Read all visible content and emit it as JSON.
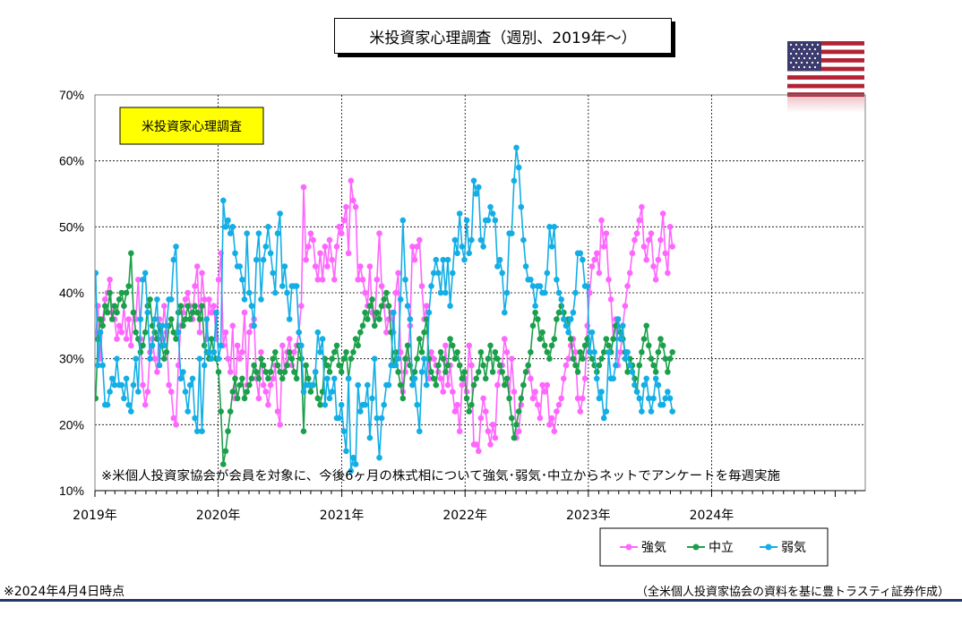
{
  "title": "米投資家心理調査（週別、2019年～）",
  "footer": {
    "as_of": "※2024年4月4日時点",
    "source": "（全米個人投資家協会の資料を基に豊トラスティ証券作成）"
  },
  "colors": {
    "bullish": "#ff66ff",
    "neutral": "#1aa04a",
    "bearish": "#13aee5",
    "annotation_bg": "#ffff00",
    "footer_line": "#1f3864"
  },
  "icon": "us-flag-icon",
  "chart_data": {
    "type": "line",
    "inner_label": "米投資家心理調査",
    "note": "※米個人投資家協会が会員を対象に、今後6ヶ月の株式相について強気･弱気･中立からネットでアンケートを毎週実施",
    "x_labels": [
      "2019年",
      "2020年",
      "2021年",
      "2022年",
      "2023年",
      "2024年"
    ],
    "x_range": [
      "2019-01-01",
      "2025-03-31"
    ],
    "y_ticks": [
      "10%",
      "20%",
      "30%",
      "40%",
      "50%",
      "60%",
      "70%"
    ],
    "ylim": [
      10,
      70
    ],
    "grid": true,
    "legend_position": "bottom-right",
    "series": [
      {
        "name": "強気",
        "color": "#ff66ff",
        "start": "2019-01-03",
        "step_days": 7,
        "values": [
          33,
          38,
          30,
          36,
          39,
          40,
          42,
          37,
          36,
          33,
          35,
          34,
          38,
          33,
          36,
          32,
          37,
          36,
          42,
          33,
          26,
          23,
          25,
          31,
          33,
          30,
          28,
          36,
          33,
          38,
          34,
          26,
          25,
          21,
          20,
          29,
          35,
          37,
          39,
          40,
          38,
          36,
          41,
          44,
          34,
          43,
          39,
          33,
          39,
          37,
          38,
          33,
          42,
          46,
          32,
          34,
          30,
          28,
          35,
          24,
          32,
          30,
          31,
          37,
          26,
          34,
          35,
          36,
          27,
          24,
          31,
          26,
          25,
          23,
          26,
          27,
          29,
          22,
          20,
          32,
          28,
          31,
          33,
          29,
          31,
          32,
          34,
          38,
          56,
          45,
          47,
          49,
          48,
          44,
          42,
          46,
          42,
          47,
          44,
          48,
          45,
          42,
          47,
          50,
          49,
          51,
          53,
          46,
          57,
          54,
          53,
          42,
          44,
          42,
          40,
          38,
          44,
          37,
          35,
          42,
          49,
          41,
          38,
          34,
          36,
          37,
          34,
          40,
          43,
          31,
          25,
          28,
          30,
          35,
          47,
          45,
          47,
          48,
          41,
          36,
          38,
          27,
          31,
          30,
          29,
          28,
          27,
          25,
          32,
          26,
          29,
          25,
          22,
          23,
          19,
          26,
          27,
          25,
          32,
          29,
          17,
          17,
          16,
          21,
          24,
          22,
          19,
          17,
          20,
          18,
          26,
          28,
          29,
          33,
          31,
          24,
          30,
          25,
          18,
          19,
          23,
          26,
          28,
          29,
          27,
          24,
          25,
          23,
          21,
          26,
          25,
          26,
          20,
          21,
          19,
          22,
          23,
          24,
          27,
          29,
          30,
          32,
          33,
          31,
          24,
          22,
          24,
          27,
          35,
          40,
          44,
          45,
          46,
          43,
          51,
          47,
          49,
          42,
          39,
          33,
          36,
          29,
          31,
          35,
          38,
          41,
          43,
          46,
          48,
          49,
          51,
          53,
          47,
          45,
          48,
          49,
          44,
          42,
          45,
          48,
          52,
          46,
          43,
          50,
          47
        ]
      },
      {
        "name": "中立",
        "color": "#1aa04a",
        "start": "2019-01-03",
        "step_days": 7,
        "values": [
          24,
          33,
          36,
          35,
          38,
          37,
          40,
          36,
          38,
          37,
          39,
          40,
          38,
          40,
          41,
          46,
          37,
          34,
          33,
          31,
          32,
          34,
          38,
          39,
          35,
          34,
          33,
          35,
          32,
          30,
          31,
          35,
          36,
          34,
          33,
          37,
          38,
          35,
          36,
          38,
          36,
          37,
          38,
          37,
          36,
          38,
          32,
          31,
          30,
          33,
          31,
          30,
          28,
          22,
          14,
          16,
          19,
          22,
          25,
          27,
          24,
          26,
          27,
          24,
          25,
          26,
          27,
          29,
          28,
          27,
          30,
          29,
          28,
          27,
          28,
          30,
          31,
          29,
          28,
          27,
          28,
          29,
          31,
          30,
          28,
          27,
          32,
          30,
          19,
          29,
          27,
          25,
          26,
          28,
          24,
          23,
          25,
          30,
          29,
          28,
          30,
          31,
          32,
          29,
          28,
          30,
          31,
          27,
          30,
          31,
          33,
          32,
          34,
          35,
          37,
          36,
          38,
          39,
          35,
          37,
          36,
          38,
          39,
          40,
          38,
          34,
          29,
          31,
          28,
          26,
          24,
          30,
          32,
          29,
          27,
          28,
          30,
          33,
          31,
          34,
          36,
          30,
          28,
          27,
          26,
          29,
          31,
          30,
          28,
          29,
          33,
          32,
          30,
          31,
          29,
          27,
          28,
          24,
          22,
          23,
          26,
          27,
          28,
          31,
          29,
          27,
          30,
          32,
          28,
          31,
          30,
          29,
          28,
          26,
          27,
          24,
          21,
          18,
          20,
          22,
          24,
          26,
          28,
          29,
          31,
          35,
          37,
          36,
          33,
          34,
          32,
          31,
          30,
          32,
          33,
          36,
          37,
          38,
          37,
          35,
          36,
          33,
          30,
          29,
          28,
          31,
          30,
          32,
          33,
          31,
          30,
          29,
          28,
          29,
          30,
          31,
          33,
          32,
          31,
          33,
          35,
          36,
          34,
          33,
          31,
          28,
          30,
          29,
          27,
          25,
          29,
          31,
          33,
          35,
          32,
          30,
          29,
          28,
          31,
          33,
          32,
          30,
          28,
          30,
          31
        ]
      },
      {
        "name": "弱気",
        "color": "#13aee5",
        "start": "2019-01-03",
        "step_days": 7,
        "values": [
          43,
          29,
          34,
          29,
          23,
          23,
          25,
          27,
          26,
          30,
          26,
          26,
          24,
          27,
          23,
          22,
          26,
          30,
          25,
          36,
          42,
          43,
          37,
          30,
          32,
          36,
          39,
          29,
          35,
          32,
          35,
          39,
          39,
          45,
          47,
          34,
          27,
          28,
          25,
          22,
          26,
          27,
          21,
          19,
          30,
          19,
          29,
          36,
          31,
          30,
          31,
          37,
          30,
          32,
          54,
          50,
          51,
          49,
          50,
          46,
          44,
          44,
          42,
          39,
          49,
          40,
          38,
          35,
          45,
          49,
          39,
          45,
          47,
          50,
          46,
          43,
          40,
          49,
          52,
          41,
          44,
          40,
          36,
          41,
          41,
          41,
          34,
          32,
          25,
          26,
          26,
          26,
          26,
          28,
          34,
          31,
          33,
          23,
          27,
          24,
          25,
          27,
          21,
          21,
          23,
          19,
          16,
          27,
          13,
          15,
          14,
          26,
          22,
          23,
          23,
          26,
          18,
          24,
          30,
          21,
          15,
          21,
          23,
          26,
          26,
          29,
          37,
          29,
          30,
          39,
          51,
          42,
          38,
          36,
          26,
          27,
          23,
          19,
          28,
          30,
          26,
          37,
          41,
          43,
          45,
          43,
          40,
          45,
          40,
          45,
          38,
          43,
          48,
          46,
          52,
          47,
          45,
          51,
          46,
          48,
          57,
          55,
          56,
          48,
          47,
          51,
          51,
          53,
          52,
          51,
          44,
          45,
          43,
          37,
          40,
          49,
          49,
          57,
          62,
          59,
          53,
          48,
          44,
          42,
          42,
          41,
          38,
          41,
          41,
          40,
          40,
          43,
          50,
          47,
          50,
          42,
          40,
          39,
          36,
          35,
          34,
          36,
          37,
          40,
          46,
          46,
          45,
          41,
          41,
          31,
          34,
          31,
          27,
          24,
          25,
          21,
          22,
          31,
          27,
          27,
          29,
          36,
          33,
          35,
          30,
          31,
          29,
          28,
          26,
          25,
          24,
          22,
          26,
          27,
          24,
          22,
          24,
          27,
          26,
          23,
          23,
          24,
          25,
          24,
          22
        ]
      }
    ]
  }
}
